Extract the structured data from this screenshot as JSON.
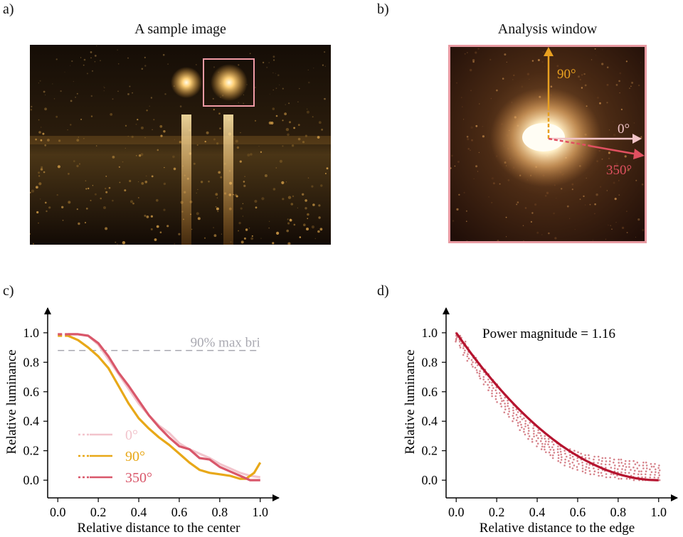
{
  "panels": {
    "a": {
      "label": "a)",
      "title": "A sample image"
    },
    "b": {
      "label": "b)",
      "title": "Analysis window",
      "directions": [
        {
          "label": "90°",
          "color": "#e8a020"
        },
        {
          "label": "0°",
          "color": "#f2c4c8"
        },
        {
          "label": "350°",
          "color": "#e05060"
        }
      ]
    },
    "c": {
      "label": "c)"
    },
    "d": {
      "label": "d)"
    }
  },
  "colors": {
    "angle0": "#f2c4cc",
    "angle90": "#e8a818",
    "angle350": "#d9576a",
    "fit": "#b5142f",
    "scatter": "#c85a64",
    "reference": "#a9a9b1"
  },
  "chart_data": [
    {
      "id": "c",
      "type": "line",
      "xlabel": "Relative distance to the center",
      "ylabel": "Relative luminance",
      "xlim": [
        -0.05,
        1.05
      ],
      "ylim": [
        -0.12,
        1.12
      ],
      "xticks": [
        "0.0",
        "0.2",
        "0.4",
        "0.6",
        "0.8",
        "1.0"
      ],
      "yticks": [
        "0.0",
        "0.2",
        "0.4",
        "0.6",
        "0.8",
        "1.0"
      ],
      "annotation": {
        "text": "90% max bri",
        "y": 0.88
      },
      "legend": {
        "position": "bottom-left"
      },
      "series": [
        {
          "name": "0°",
          "colorKey": "angle0",
          "x": [
            0,
            0.1,
            0.15,
            0.2,
            0.25,
            0.3,
            0.35,
            0.4,
            0.45,
            0.5,
            0.55,
            0.6,
            0.65,
            0.7,
            0.75,
            0.8,
            0.85,
            0.9,
            0.95,
            1.0
          ],
          "y": [
            0.99,
            0.99,
            0.98,
            0.92,
            0.82,
            0.72,
            0.62,
            0.52,
            0.44,
            0.37,
            0.32,
            0.25,
            0.21,
            0.18,
            0.15,
            0.11,
            0.08,
            0.05,
            0.03,
            0.02
          ]
        },
        {
          "name": "90°",
          "colorKey": "angle90",
          "x": [
            0,
            0.05,
            0.1,
            0.15,
            0.2,
            0.25,
            0.3,
            0.35,
            0.4,
            0.45,
            0.5,
            0.55,
            0.6,
            0.65,
            0.7,
            0.75,
            0.8,
            0.85,
            0.9,
            0.93,
            0.97,
            1.0
          ],
          "y": [
            0.98,
            0.98,
            0.95,
            0.9,
            0.84,
            0.76,
            0.64,
            0.52,
            0.42,
            0.35,
            0.29,
            0.24,
            0.18,
            0.12,
            0.07,
            0.05,
            0.04,
            0.03,
            0.01,
            0.01,
            0.05,
            0.12
          ]
        },
        {
          "name": "350°",
          "colorKey": "angle350",
          "x": [
            0,
            0.05,
            0.1,
            0.15,
            0.2,
            0.25,
            0.3,
            0.35,
            0.4,
            0.45,
            0.5,
            0.55,
            0.6,
            0.65,
            0.7,
            0.75,
            0.8,
            0.85,
            0.9,
            0.95,
            1.0
          ],
          "y": [
            0.99,
            0.99,
            0.99,
            0.98,
            0.93,
            0.84,
            0.73,
            0.64,
            0.54,
            0.44,
            0.36,
            0.29,
            0.23,
            0.21,
            0.15,
            0.14,
            0.09,
            0.06,
            0.03,
            0.0,
            0.0
          ]
        }
      ]
    },
    {
      "id": "d",
      "type": "scatter",
      "xlabel": "Relative distance to the edge",
      "ylabel": "Relative luminance",
      "xlim": [
        -0.05,
        1.05
      ],
      "ylim": [
        -0.12,
        1.12
      ],
      "xticks": [
        "0.0",
        "0.2",
        "0.4",
        "0.6",
        "0.8",
        "1.0"
      ],
      "yticks": [
        "0.0",
        "0.2",
        "0.4",
        "0.6",
        "0.8",
        "1.0"
      ],
      "annotation": {
        "text": "Power magnitude = 1.16"
      },
      "fit": {
        "exponent": 1.16,
        "x": [
          0,
          0.1,
          0.2,
          0.3,
          0.4,
          0.5,
          0.6,
          0.7,
          0.8,
          0.9,
          1.0
        ],
        "y": [
          1.0,
          0.81,
          0.63,
          0.47,
          0.34,
          0.22,
          0.13,
          0.07,
          0.03,
          0.01,
          0.0
        ]
      },
      "scatter_x": [
        0.0,
        0.02,
        0.04,
        0.06,
        0.08,
        0.1,
        0.12,
        0.14,
        0.16,
        0.18,
        0.2,
        0.22,
        0.24,
        0.26,
        0.28,
        0.3,
        0.32,
        0.34,
        0.36,
        0.38,
        0.4,
        0.42,
        0.44,
        0.46,
        0.48,
        0.5,
        0.52,
        0.54,
        0.56,
        0.58,
        0.6,
        0.62,
        0.64,
        0.66,
        0.68,
        0.7,
        0.72,
        0.74,
        0.76,
        0.78,
        0.8,
        0.82,
        0.84,
        0.86,
        0.88,
        0.9,
        0.92,
        0.94,
        0.96,
        0.98,
        1.0
      ],
      "scatter_low": [
        0.94,
        0.9,
        0.85,
        0.81,
        0.77,
        0.73,
        0.69,
        0.65,
        0.61,
        0.57,
        0.53,
        0.5,
        0.46,
        0.43,
        0.4,
        0.37,
        0.34,
        0.31,
        0.28,
        0.26,
        0.23,
        0.21,
        0.19,
        0.17,
        0.15,
        0.13,
        0.12,
        0.1,
        0.09,
        0.08,
        0.07,
        0.06,
        0.05,
        0.04,
        0.04,
        0.03,
        0.03,
        0.02,
        0.02,
        0.02,
        0.01,
        0.01,
        0.01,
        0.01,
        0.0,
        0.0,
        0.0,
        0.0,
        0.0,
        0.0,
        0.0
      ],
      "scatter_high": [
        1.0,
        0.98,
        0.94,
        0.9,
        0.86,
        0.83,
        0.79,
        0.75,
        0.72,
        0.68,
        0.65,
        0.61,
        0.58,
        0.54,
        0.51,
        0.48,
        0.45,
        0.42,
        0.39,
        0.37,
        0.34,
        0.32,
        0.3,
        0.28,
        0.26,
        0.25,
        0.23,
        0.22,
        0.21,
        0.2,
        0.19,
        0.18,
        0.17,
        0.17,
        0.16,
        0.16,
        0.15,
        0.15,
        0.15,
        0.14,
        0.14,
        0.14,
        0.13,
        0.13,
        0.13,
        0.12,
        0.12,
        0.12,
        0.11,
        0.11,
        0.1
      ]
    }
  ]
}
